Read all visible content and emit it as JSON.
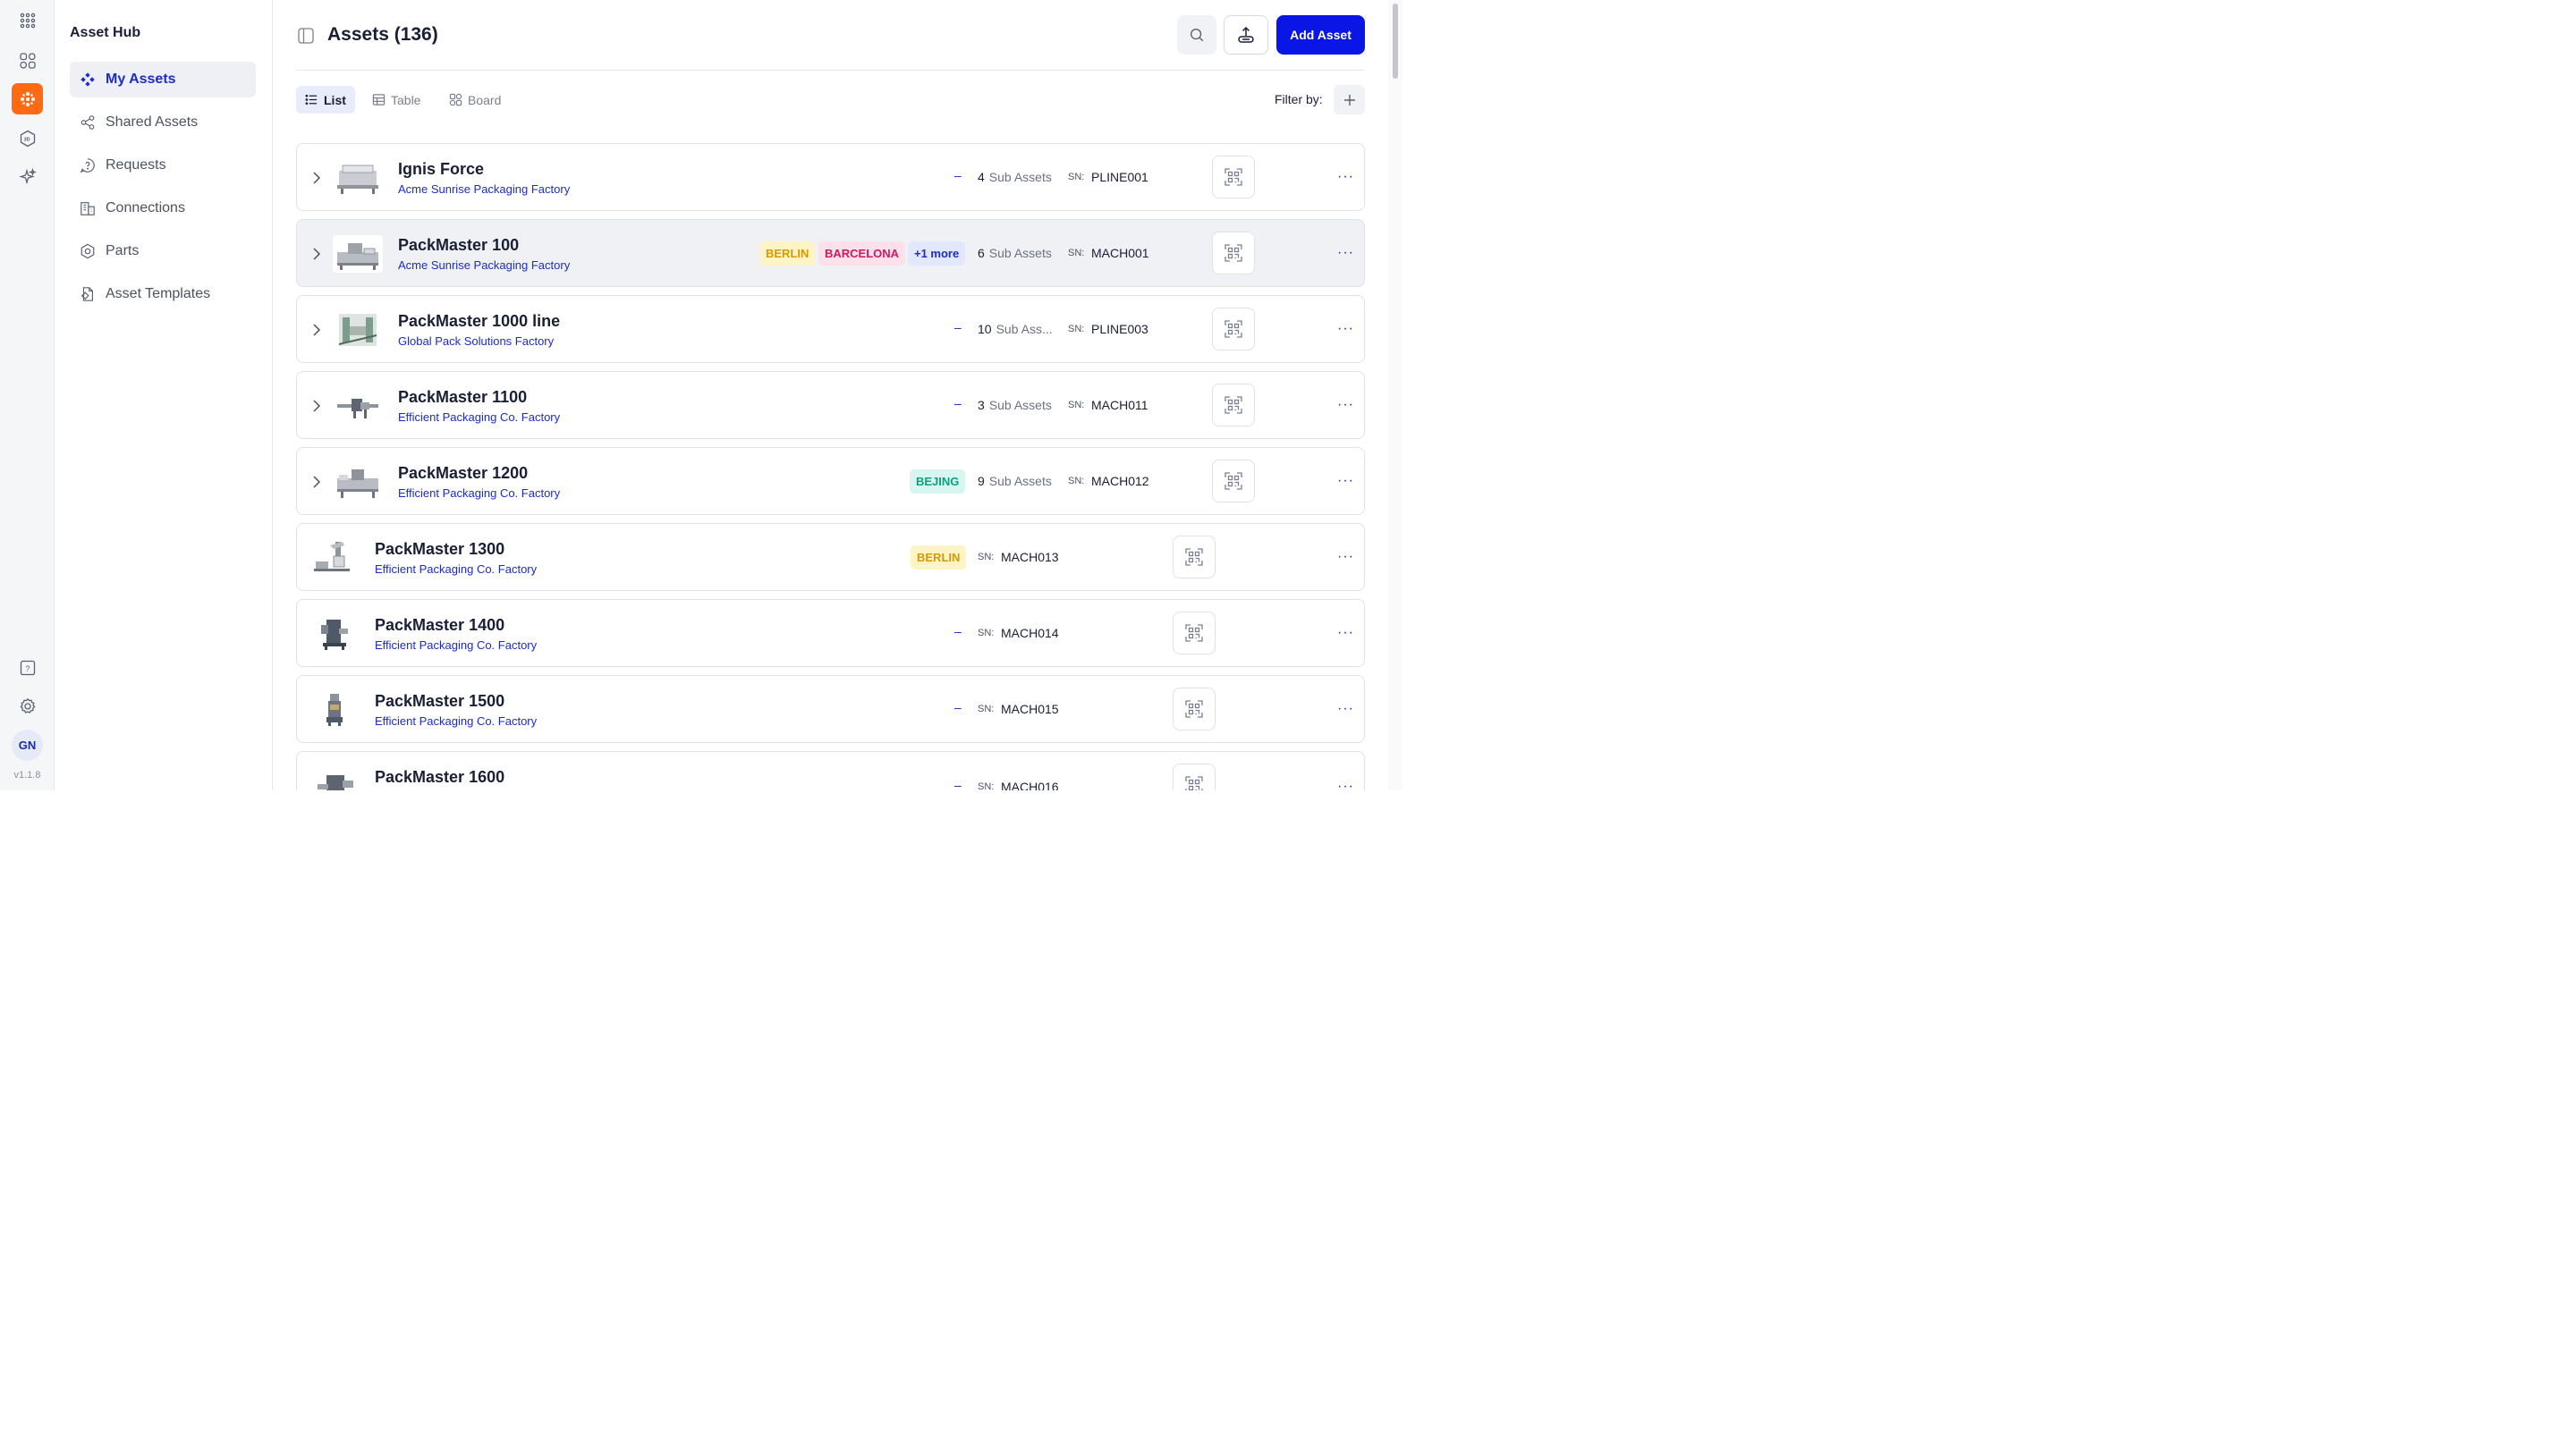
{
  "app": {
    "version": "v1.1.8",
    "user_initials": "GN",
    "rail_icons": [
      "apps-grid-icon",
      "dashboard-icon",
      "assets-app-icon",
      "3d-icon",
      "sparkle-icon",
      "help-icon",
      "settings-icon"
    ]
  },
  "sidebar": {
    "title": "Asset Hub",
    "items": [
      {
        "label": "My Assets",
        "icon": "diamond-grid-icon",
        "active": true
      },
      {
        "label": "Shared Assets",
        "icon": "share-icon"
      },
      {
        "label": "Requests",
        "icon": "question-bubble-icon"
      },
      {
        "label": "Connections",
        "icon": "buildings-icon"
      },
      {
        "label": "Parts",
        "icon": "hex-nut-icon"
      },
      {
        "label": "Asset Templates",
        "icon": "template-icon"
      }
    ]
  },
  "header": {
    "title": "Assets (136)",
    "add_button": "Add Asset"
  },
  "views": {
    "tabs": [
      {
        "label": "List",
        "active": true
      },
      {
        "label": "Table"
      },
      {
        "label": "Board"
      }
    ],
    "filter_label": "Filter by:"
  },
  "sn_label": "SN:",
  "assets": [
    {
      "name": "Ignis Force",
      "location": "Acme Sunrise Packaging Factory",
      "expandable": true,
      "tags": [],
      "dash": "–",
      "sub_count": "4",
      "sub_label": "Sub Assets",
      "sn": "PLINE001"
    },
    {
      "name": "PackMaster 100",
      "location": "Acme Sunrise Packaging Factory",
      "expandable": true,
      "tags": [
        "BERLIN",
        "BARCELONA",
        "+1 more"
      ],
      "sub_count": "6",
      "sub_label": "Sub Assets",
      "sn": "MACH001"
    },
    {
      "name": "PackMaster 1000 line",
      "location": "Global Pack Solutions Factory",
      "expandable": true,
      "tags": [],
      "dash": "–",
      "sub_count": "10",
      "sub_label": "Sub Ass...",
      "sn": "PLINE003"
    },
    {
      "name": "PackMaster 1100",
      "location": "Efficient Packaging Co. Factory",
      "expandable": true,
      "tags": [],
      "dash": "–",
      "sub_count": "3",
      "sub_label": "Sub Assets",
      "sn": "MACH011"
    },
    {
      "name": "PackMaster 1200",
      "location": "Efficient Packaging Co. Factory",
      "expandable": true,
      "tags": [
        "BEJING"
      ],
      "sub_count": "9",
      "sub_label": "Sub Assets",
      "sn": "MACH012"
    },
    {
      "name": "PackMaster 1300",
      "location": "Efficient Packaging Co. Factory",
      "expandable": false,
      "tags": [
        "BERLIN"
      ],
      "sn": "MACH013"
    },
    {
      "name": "PackMaster 1400",
      "location": "Efficient Packaging Co. Factory",
      "expandable": false,
      "tags": [],
      "dash": "–",
      "sn": "MACH014"
    },
    {
      "name": "PackMaster 1500",
      "location": "Efficient Packaging Co. Factory",
      "expandable": false,
      "tags": [],
      "dash": "–",
      "sn": "MACH015"
    },
    {
      "name": "PackMaster 1600",
      "location": "",
      "expandable": false,
      "tags": [],
      "dash": "–",
      "sn": "MACH016"
    }
  ],
  "colors": {
    "brand_orange": "#ff6a13",
    "primary_blue": "#0a16e6",
    "link_blue": "#1d2cc8"
  }
}
